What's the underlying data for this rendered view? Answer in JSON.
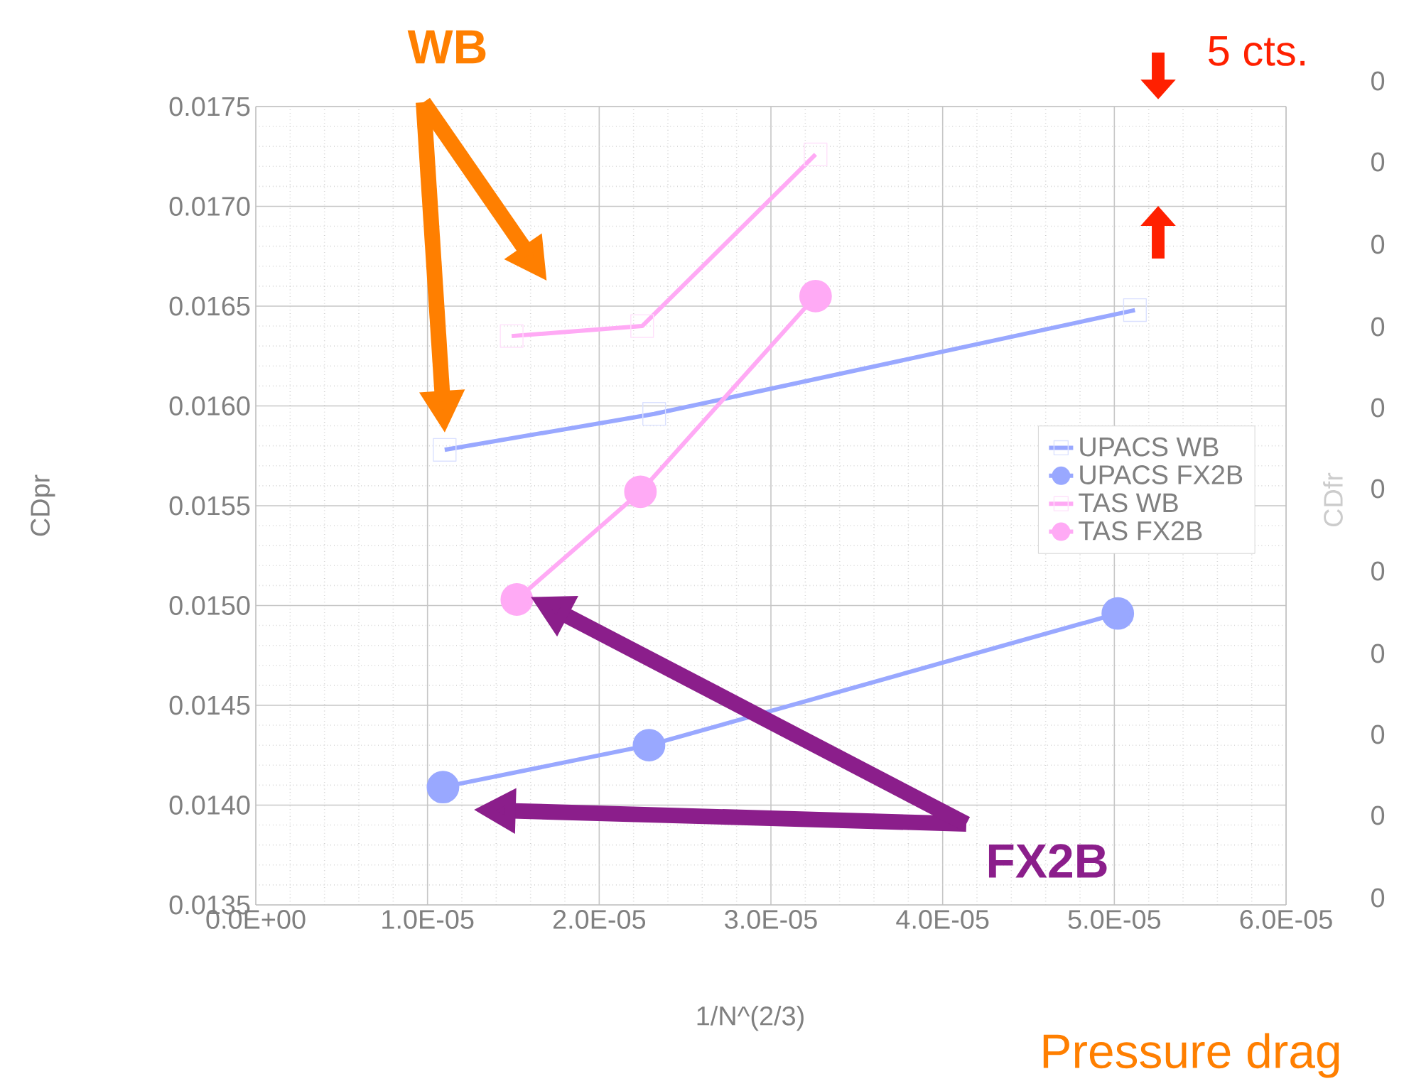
{
  "chart_data": {
    "type": "line",
    "xlabel": "1/N^(2/3)",
    "ylabel": "CDpr",
    "y2label": "CDfr",
    "xlim": [
      0,
      6e-05
    ],
    "ylim": [
      0.0135,
      0.0175
    ],
    "xticks": [
      {
        "value": 0,
        "label": "0.0E+00"
      },
      {
        "value": 1e-05,
        "label": "1.0E-05"
      },
      {
        "value": 2e-05,
        "label": "2.0E-05"
      },
      {
        "value": 3e-05,
        "label": "3.0E-05"
      },
      {
        "value": 4e-05,
        "label": "4.0E-05"
      },
      {
        "value": 5e-05,
        "label": "5.0E-05"
      },
      {
        "value": 6e-05,
        "label": "6.0E-05"
      }
    ],
    "yticks": [
      {
        "value": 0.0135,
        "label": "0.0135"
      },
      {
        "value": 0.014,
        "label": "0.0140"
      },
      {
        "value": 0.0145,
        "label": "0.0145"
      },
      {
        "value": 0.015,
        "label": "0.0150"
      },
      {
        "value": 0.0155,
        "label": "0.0155"
      },
      {
        "value": 0.016,
        "label": "0.0160"
      },
      {
        "value": 0.0165,
        "label": "0.0165"
      },
      {
        "value": 0.017,
        "label": "0.0170"
      },
      {
        "value": 0.0175,
        "label": "0.0175"
      }
    ],
    "grid": true,
    "legend": "right",
    "series": [
      {
        "name": "UPACS WB",
        "color": "#99a8ff",
        "marker": "square",
        "x": [
          1.1e-05,
          2.32e-05,
          5.12e-05
        ],
        "values": [
          0.01578,
          0.01596,
          0.01648
        ]
      },
      {
        "name": "UPACS FX2B",
        "color": "#99a8ff",
        "marker": "circle",
        "x": [
          1.09e-05,
          2.29e-05,
          5.02e-05
        ],
        "values": [
          0.01409,
          0.0143,
          0.01496
        ]
      },
      {
        "name": "TAS WB",
        "color": "#ffaaf5",
        "marker": "square",
        "x": [
          1.49e-05,
          2.25e-05,
          3.26e-05
        ],
        "values": [
          0.01635,
          0.0164,
          0.01726
        ]
      },
      {
        "name": "TAS FX2B",
        "color": "#ffaaf5",
        "marker": "circle",
        "x": [
          1.52e-05,
          2.24e-05,
          3.26e-05
        ],
        "values": [
          0.01503,
          0.01557,
          0.01655
        ]
      }
    ],
    "annotations": [
      "WB",
      "FX2B",
      "5 cts.",
      "Pressure drag",
      "0",
      "0",
      "0",
      "0",
      "0",
      "0",
      "0",
      "0",
      "0",
      "0",
      "0"
    ]
  }
}
